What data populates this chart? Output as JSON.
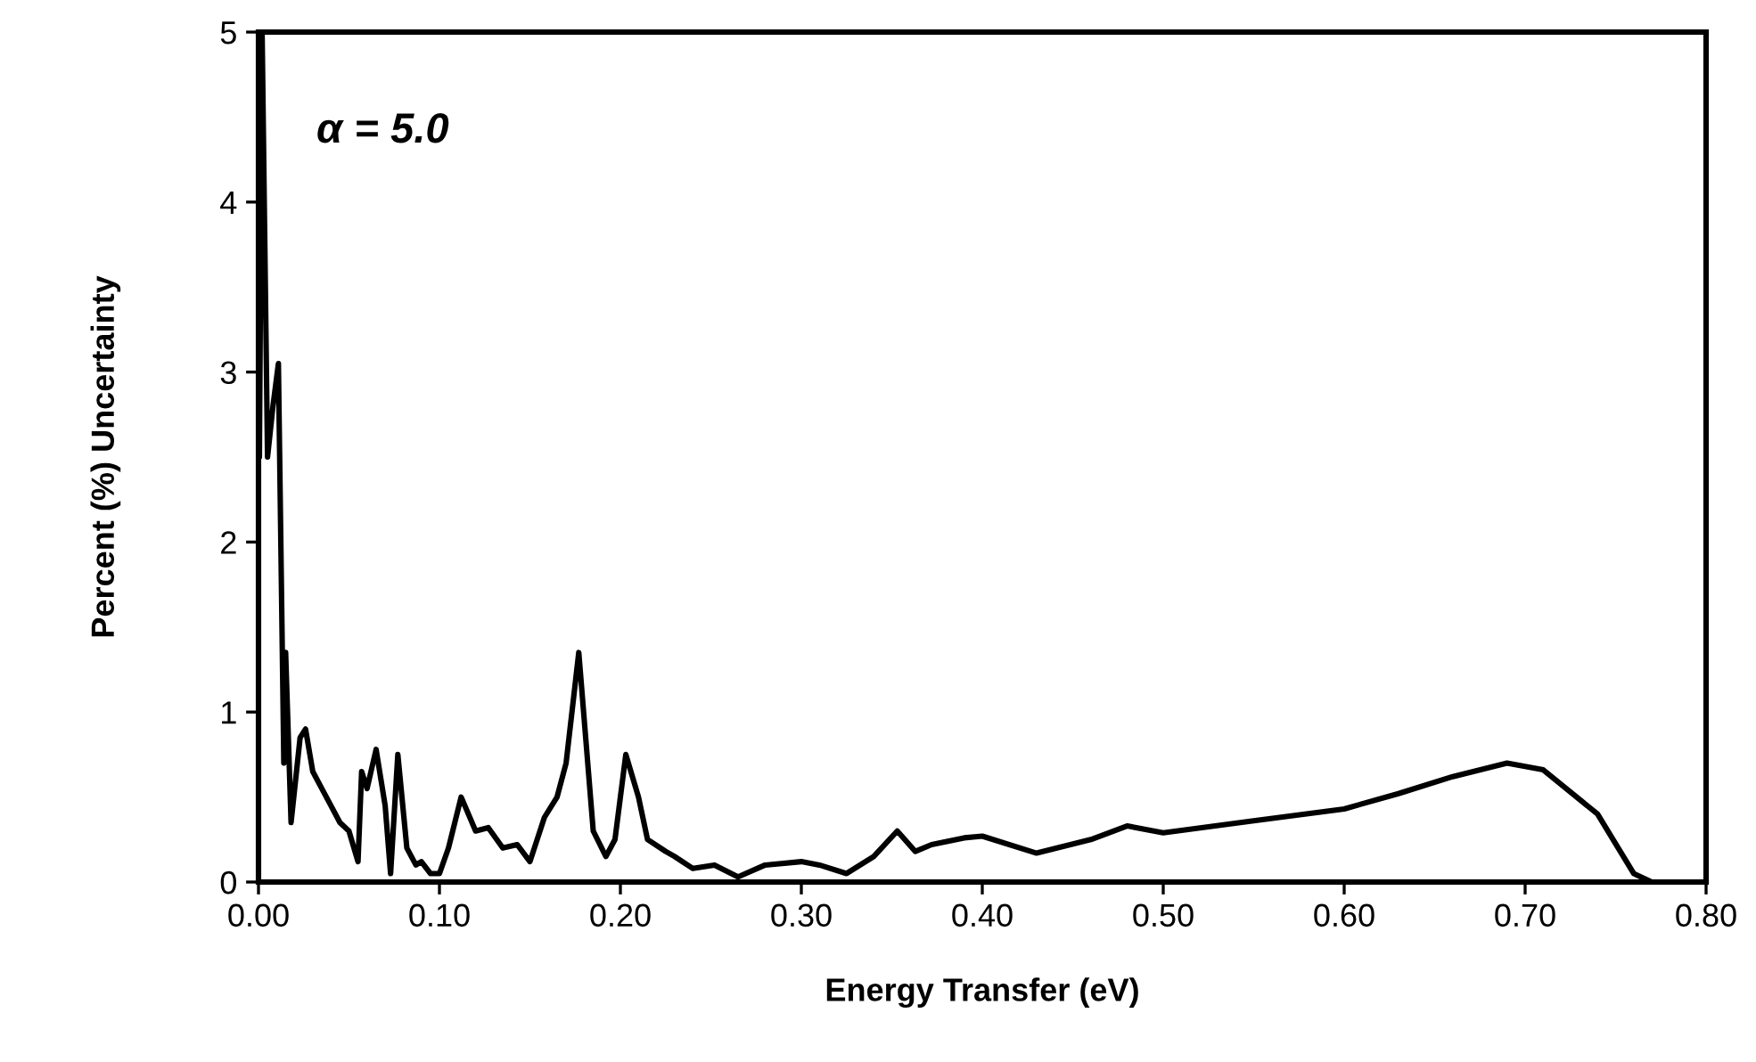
{
  "chart_data": {
    "type": "line",
    "xlabel": "Energy Transfer (eV)",
    "ylabel": "Percent (%) Uncertainty",
    "annotations": [
      "α = 5.0"
    ],
    "xlim": [
      0,
      0.8
    ],
    "xticks": [
      {
        "value": 0,
        "label": "0.00"
      },
      {
        "value": 0.1,
        "label": "0.10"
      },
      {
        "value": 0.2,
        "label": "0.20"
      },
      {
        "value": 0.3,
        "label": "0.30"
      },
      {
        "value": 0.4,
        "label": "0.40"
      },
      {
        "value": 0.5,
        "label": "0.50"
      },
      {
        "value": 0.6,
        "label": "0.60"
      },
      {
        "value": 0.7,
        "label": "0.70"
      },
      {
        "value": 0.8,
        "label": "0.80"
      }
    ],
    "ylim": [
      0,
      5
    ],
    "yticks": [
      0,
      1,
      2,
      3,
      4,
      5
    ],
    "grid": false,
    "legend": false,
    "marker": "none",
    "line_style": "solid",
    "series": [
      {
        "color": "#000000",
        "x": [
          0.0005,
          0.002,
          0.005,
          0.008,
          0.011,
          0.014,
          0.015,
          0.018,
          0.023,
          0.026,
          0.03,
          0.035,
          0.04,
          0.045,
          0.05,
          0.055,
          0.057,
          0.06,
          0.065,
          0.07,
          0.073,
          0.077,
          0.082,
          0.087,
          0.09,
          0.095,
          0.1,
          0.105,
          0.112,
          0.12,
          0.127,
          0.135,
          0.143,
          0.15,
          0.158,
          0.165,
          0.17,
          0.177,
          0.185,
          0.192,
          0.197,
          0.203,
          0.21,
          0.215,
          0.225,
          0.23,
          0.24,
          0.252,
          0.265,
          0.28,
          0.3,
          0.31,
          0.325,
          0.34,
          0.353,
          0.363,
          0.372,
          0.39,
          0.4,
          0.43,
          0.46,
          0.48,
          0.5,
          0.55,
          0.6,
          0.63,
          0.66,
          0.69,
          0.71,
          0.74,
          0.76,
          0.77,
          0.8
        ],
        "values": [
          2.5,
          5,
          2.5,
          2.8,
          3.05,
          0.7,
          1.35,
          0.35,
          0.85,
          0.9,
          0.65,
          0.55,
          0.45,
          0.35,
          0.3,
          0.12,
          0.65,
          0.55,
          0.78,
          0.45,
          0.05,
          0.75,
          0.2,
          0.1,
          0.12,
          0.05,
          0.05,
          0.2,
          0.5,
          0.3,
          0.32,
          0.2,
          0.22,
          0.12,
          0.38,
          0.5,
          0.7,
          1.35,
          0.3,
          0.15,
          0.25,
          0.75,
          0.5,
          0.25,
          0.18,
          0.15,
          0.08,
          0.1,
          0.03,
          0.1,
          0.12,
          0.1,
          0.05,
          0.15,
          0.3,
          0.18,
          0.22,
          0.26,
          0.27,
          0.17,
          0.25,
          0.33,
          0.29,
          0.36,
          0.43,
          0.52,
          0.62,
          0.7,
          0.66,
          0.4,
          0.05,
          0,
          0
        ]
      }
    ]
  }
}
